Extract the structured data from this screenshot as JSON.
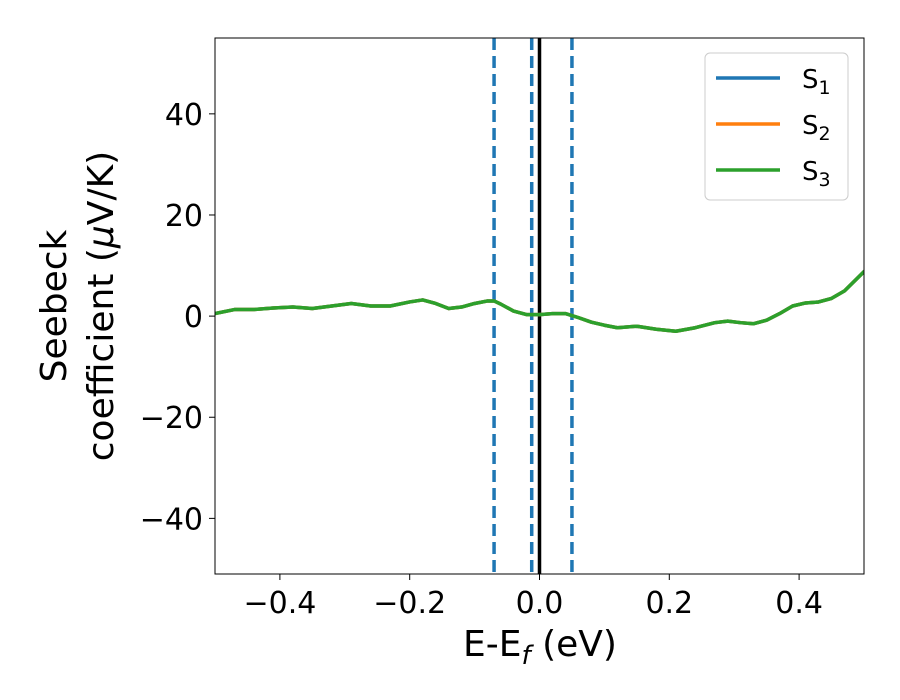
{
  "chart_data": {
    "type": "line",
    "xlabel": {
      "main": "E-E",
      "sub": "f",
      "unit": " (eV)"
    },
    "ylabel": {
      "line1": "Seebeck",
      "line2_prefix": "coefficient  (",
      "mu": "μ",
      "line2_suffix": "V/K)"
    },
    "xlim": [
      -0.5,
      0.5
    ],
    "ylim": [
      -51,
      55
    ],
    "xticks": [
      -0.4,
      -0.2,
      0.0,
      0.2,
      0.4
    ],
    "xtick_labels": [
      "−0.4",
      "−0.2",
      "0.0",
      "0.2",
      "0.4"
    ],
    "yticks": [
      -40,
      -20,
      0,
      20,
      40
    ],
    "ytick_labels": [
      "−40",
      "−20",
      "0",
      "20",
      "40"
    ],
    "grid": false,
    "legend_position": "top-right",
    "vlines": [
      {
        "x": -0.07,
        "style": "dashed",
        "color": "#1f77b4"
      },
      {
        "x": -0.012,
        "style": "dashed",
        "color": "#1f77b4"
      },
      {
        "x": 0.05,
        "style": "dashed",
        "color": "#1f77b4"
      },
      {
        "x": 0.0,
        "style": "solid",
        "color": "#000000"
      }
    ],
    "series": [
      {
        "name": "S",
        "sub": "1",
        "color": "#1f77b4",
        "x": [
          -0.5,
          -0.47,
          -0.44,
          -0.41,
          -0.38,
          -0.35,
          -0.32,
          -0.29,
          -0.26,
          -0.23,
          -0.2,
          -0.18,
          -0.16,
          -0.14,
          -0.12,
          -0.1,
          -0.08,
          -0.07,
          -0.06,
          -0.04,
          -0.02,
          0.0,
          0.02,
          0.04,
          0.06,
          0.08,
          0.1,
          0.12,
          0.15,
          0.18,
          0.21,
          0.24,
          0.27,
          0.29,
          0.31,
          0.33,
          0.35,
          0.37,
          0.39,
          0.41,
          0.43,
          0.45,
          0.47,
          0.5
        ],
        "y": [
          0.5,
          1.3,
          1.3,
          1.6,
          1.8,
          1.5,
          2.0,
          2.5,
          2.0,
          2.0,
          2.8,
          3.2,
          2.5,
          1.5,
          1.8,
          2.5,
          3.0,
          3.0,
          2.4,
          1.0,
          0.3,
          0.3,
          0.5,
          0.5,
          -0.3,
          -1.2,
          -1.8,
          -2.3,
          -2.0,
          -2.6,
          -3.0,
          -2.3,
          -1.3,
          -1.0,
          -1.3,
          -1.5,
          -0.8,
          0.5,
          2.0,
          2.6,
          2.8,
          3.5,
          5.0,
          8.8
        ]
      },
      {
        "name": "S",
        "sub": "2",
        "color": "#ff7f0e",
        "x": [
          -0.5,
          -0.47,
          -0.44,
          -0.41,
          -0.38,
          -0.35,
          -0.32,
          -0.29,
          -0.26,
          -0.23,
          -0.2,
          -0.18,
          -0.16,
          -0.14,
          -0.12,
          -0.1,
          -0.08,
          -0.07,
          -0.06,
          -0.04,
          -0.02,
          0.0,
          0.02,
          0.04,
          0.06,
          0.08,
          0.1,
          0.12,
          0.15,
          0.18,
          0.21,
          0.24,
          0.27,
          0.29,
          0.31,
          0.33,
          0.35,
          0.37,
          0.39,
          0.41,
          0.43,
          0.45,
          0.47,
          0.5
        ],
        "y": [
          0.5,
          1.3,
          1.3,
          1.6,
          1.8,
          1.5,
          2.0,
          2.5,
          2.0,
          2.0,
          2.8,
          3.2,
          2.5,
          1.5,
          1.8,
          2.5,
          3.0,
          3.0,
          2.4,
          1.0,
          0.3,
          0.3,
          0.5,
          0.5,
          -0.3,
          -1.2,
          -1.8,
          -2.3,
          -2.0,
          -2.6,
          -3.0,
          -2.3,
          -1.3,
          -1.0,
          -1.3,
          -1.5,
          -0.8,
          0.5,
          2.0,
          2.6,
          2.8,
          3.5,
          5.0,
          8.8
        ]
      },
      {
        "name": "S",
        "sub": "3",
        "color": "#2ca02c",
        "x": [
          -0.5,
          -0.47,
          -0.44,
          -0.41,
          -0.38,
          -0.35,
          -0.32,
          -0.29,
          -0.26,
          -0.23,
          -0.2,
          -0.18,
          -0.16,
          -0.14,
          -0.12,
          -0.1,
          -0.08,
          -0.07,
          -0.06,
          -0.04,
          -0.02,
          0.0,
          0.02,
          0.04,
          0.06,
          0.08,
          0.1,
          0.12,
          0.15,
          0.18,
          0.21,
          0.24,
          0.27,
          0.29,
          0.31,
          0.33,
          0.35,
          0.37,
          0.39,
          0.41,
          0.43,
          0.45,
          0.47,
          0.5
        ],
        "y": [
          0.5,
          1.3,
          1.3,
          1.6,
          1.8,
          1.5,
          2.0,
          2.5,
          2.0,
          2.0,
          2.8,
          3.2,
          2.5,
          1.5,
          1.8,
          2.5,
          3.0,
          3.0,
          2.4,
          1.0,
          0.3,
          0.3,
          0.5,
          0.5,
          -0.3,
          -1.2,
          -1.8,
          -2.3,
          -2.0,
          -2.6,
          -3.0,
          -2.3,
          -1.3,
          -1.0,
          -1.3,
          -1.5,
          -0.8,
          0.5,
          2.0,
          2.6,
          2.8,
          3.5,
          5.0,
          8.8
        ]
      }
    ]
  }
}
